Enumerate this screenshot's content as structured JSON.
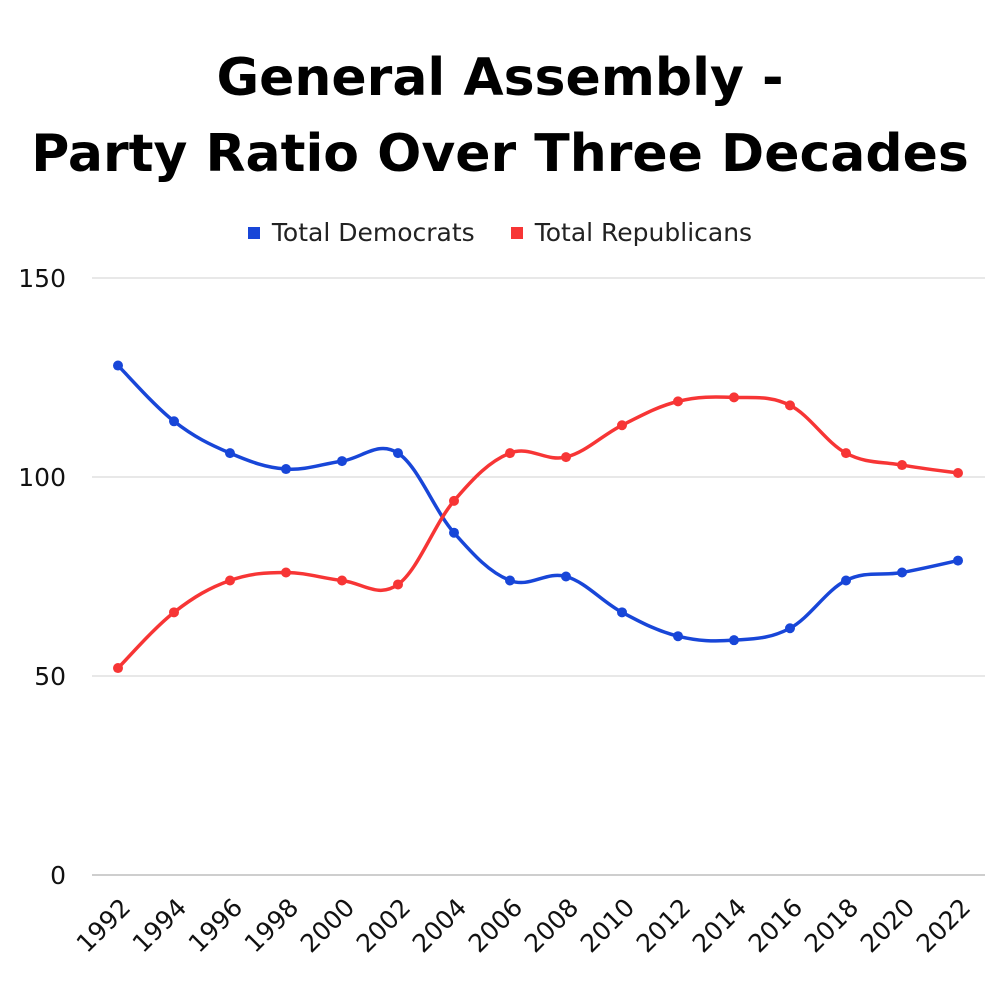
{
  "chart_data": {
    "type": "line",
    "title_line1": "General Assembly -",
    "title_line2": "Party Ratio Over Three Decades",
    "categories": [
      "1992",
      "1994",
      "1996",
      "1998",
      "2000",
      "2002",
      "2004",
      "2006",
      "2008",
      "2010",
      "2012",
      "2014",
      "2016",
      "2018",
      "2020",
      "2022"
    ],
    "series": [
      {
        "name": "Total Democrats",
        "color": "#1846d8",
        "values": [
          128,
          114,
          106,
          102,
          104,
          106,
          86,
          74,
          75,
          66,
          60,
          59,
          62,
          74,
          76,
          79
        ]
      },
      {
        "name": "Total Republicans",
        "color": "#f73535",
        "values": [
          52,
          66,
          74,
          76,
          74,
          73,
          94,
          106,
          105,
          113,
          119,
          120,
          118,
          106,
          103,
          101
        ]
      }
    ],
    "yticks": [
      0,
      50,
      100,
      150
    ],
    "ylim": [
      0,
      150
    ],
    "grid": true,
    "legend_position": "top"
  }
}
